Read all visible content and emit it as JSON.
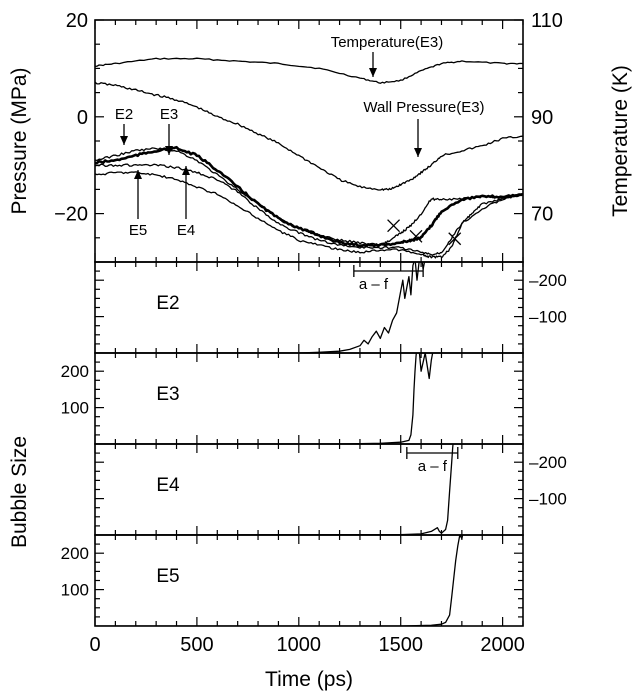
{
  "chart_data": [
    {
      "type": "line",
      "xlabel": "Time (ps)",
      "ylabel": "Pressure (MPa)",
      "ylabel_right": "Temperature (K)",
      "xlim": [
        0,
        2100
      ],
      "ylim": [
        -30,
        20
      ],
      "ylim_right": [
        60,
        110
      ],
      "x_ticks": [
        "0",
        "500",
        "1000",
        "1500",
        "2000"
      ],
      "y_ticks": [
        "20",
        "0",
        "−20"
      ],
      "y_ticks_right": [
        "110",
        "90",
        "70"
      ],
      "annotations": [
        "Temperature(E3)",
        "Wall Pressure(E3)",
        "E2",
        "E3",
        "E4",
        "E5"
      ],
      "series": [
        {
          "name": "Temperature(E3)",
          "axis": "right",
          "x": [
            0,
            100,
            300,
            500,
            700,
            900,
            1100,
            1300,
            1400,
            1500,
            1600,
            1700,
            1800,
            2000,
            2100
          ],
          "y": [
            100.5,
            101,
            102,
            102,
            101.5,
            101,
            100,
            98,
            97,
            97.5,
            99.5,
            101,
            101.5,
            101,
            101
          ]
        },
        {
          "name": "Wall Pressure(E3)",
          "axis": "left",
          "x": [
            0,
            100,
            200,
            300,
            400,
            500,
            600,
            700,
            800,
            900,
            1000,
            1100,
            1200,
            1300,
            1400,
            1450,
            1500,
            1550,
            1600,
            1650,
            1700,
            1800,
            1900,
            2000,
            2100
          ],
          "y": [
            7,
            6.5,
            5.5,
            4.5,
            3.5,
            2,
            0,
            -1.5,
            -3.5,
            -5.5,
            -8,
            -10.5,
            -13,
            -14.5,
            -15,
            -15,
            -14,
            -13,
            -11.5,
            -10,
            -8,
            -7,
            -6,
            -4.5,
            -4
          ]
        },
        {
          "name": "E2",
          "axis": "left",
          "x": [
            0,
            100,
            200,
            300,
            400,
            500,
            600,
            700,
            800,
            900,
            1000,
            1100,
            1200,
            1300,
            1400,
            1450,
            1500,
            1550,
            1600,
            1650,
            1700,
            1800,
            1900,
            2000,
            2100
          ],
          "y": [
            -9,
            -8,
            -7,
            -6.5,
            -7,
            -9,
            -12,
            -15,
            -18,
            -21,
            -23,
            -24.5,
            -25.5,
            -26,
            -26.5,
            -25.5,
            -24,
            -22.5,
            -20,
            -17,
            -17,
            -17,
            -16.5,
            -16.5,
            -16
          ]
        },
        {
          "name": "E3",
          "axis": "left",
          "x": [
            0,
            100,
            200,
            300,
            400,
            500,
            600,
            700,
            800,
            900,
            1000,
            1100,
            1200,
            1300,
            1400,
            1500,
            1550,
            1600,
            1650,
            1700,
            1800,
            1900,
            2000,
            2100
          ],
          "y": [
            -9.5,
            -9,
            -8,
            -7,
            -6.5,
            -8,
            -11,
            -14.5,
            -18,
            -21,
            -23,
            -24.5,
            -26,
            -26.5,
            -26.5,
            -26,
            -25.5,
            -25,
            -22.5,
            -19.5,
            -17,
            -16.5,
            -16.5,
            -16
          ]
        },
        {
          "name": "E4",
          "axis": "left",
          "x": [
            0,
            100,
            200,
            300,
            400,
            500,
            600,
            700,
            800,
            900,
            1000,
            1100,
            1200,
            1300,
            1400,
            1500,
            1600,
            1650,
            1700,
            1750,
            1800,
            1850,
            1900,
            2000,
            2100
          ],
          "y": [
            -10,
            -10,
            -10,
            -10,
            -10.5,
            -11.5,
            -13,
            -15.5,
            -19,
            -22,
            -24,
            -25.5,
            -26.5,
            -27,
            -27,
            -27,
            -28,
            -28.5,
            -28,
            -25,
            -22,
            -20,
            -18,
            -17,
            -16
          ]
        },
        {
          "name": "E5",
          "axis": "left",
          "x": [
            0,
            100,
            200,
            300,
            400,
            500,
            600,
            700,
            800,
            900,
            1000,
            1100,
            1200,
            1300,
            1400,
            1500,
            1600,
            1650,
            1700,
            1750,
            1800,
            1900,
            2000,
            2100
          ],
          "y": [
            -12,
            -11.5,
            -11.5,
            -12,
            -13,
            -14.5,
            -16,
            -18.5,
            -21,
            -23.5,
            -25.5,
            -26.5,
            -27.5,
            -28,
            -27.5,
            -27.5,
            -28.5,
            -29,
            -29,
            -27,
            -22,
            -19,
            -17,
            -16
          ]
        }
      ]
    },
    {
      "type": "line",
      "label": "E2",
      "x_ticks": [
        "0",
        "500",
        "1000",
        "1500",
        "2000"
      ],
      "y_ticks": [
        "200",
        "100"
      ],
      "y_ticks_side": "right",
      "ylim": [
        0,
        250
      ],
      "bracket": "a – f",
      "x": [
        0,
        1000,
        1100,
        1200,
        1250,
        1300,
        1320,
        1340,
        1360,
        1380,
        1400,
        1420,
        1440,
        1460,
        1480,
        1500,
        1510,
        1520,
        1530,
        1540,
        1550,
        1560,
        1570,
        1580,
        1590,
        1600,
        1610,
        1620,
        1630
      ],
      "values": [
        0,
        0,
        2,
        5,
        10,
        20,
        35,
        25,
        45,
        60,
        40,
        70,
        55,
        90,
        110,
        170,
        200,
        150,
        180,
        210,
        160,
        240,
        260,
        200,
        250,
        280,
        230,
        260,
        250
      ]
    },
    {
      "type": "line",
      "label": "E3",
      "x_ticks": [
        "0",
        "500",
        "1000",
        "1500",
        "2000"
      ],
      "y_ticks": [
        "200",
        "100"
      ],
      "y_ticks_side": "left",
      "ylim": [
        0,
        250
      ],
      "x": [
        0,
        1200,
        1400,
        1500,
        1540,
        1550,
        1560,
        1565,
        1570,
        1575,
        1580,
        1590,
        1600,
        1620,
        1640,
        1650,
        1660
      ],
      "values": [
        0,
        0,
        2,
        5,
        10,
        25,
        80,
        150,
        200,
        240,
        270,
        260,
        200,
        250,
        180,
        230,
        260
      ]
    },
    {
      "type": "line",
      "label": "E4",
      "x_ticks": [
        "0",
        "500",
        "1000",
        "1500",
        "2000"
      ],
      "y_ticks": [
        "200",
        "100"
      ],
      "y_ticks_side": "right",
      "ylim": [
        0,
        250
      ],
      "bracket": "a – f",
      "x": [
        0,
        1500,
        1600,
        1650,
        1680,
        1690,
        1700,
        1720,
        1730,
        1740,
        1750,
        1755,
        1760
      ],
      "values": [
        0,
        1,
        3,
        10,
        20,
        10,
        5,
        15,
        40,
        120,
        200,
        240,
        270
      ]
    },
    {
      "type": "line",
      "label": "E5",
      "x_ticks": [
        "0",
        "500",
        "1000",
        "1500",
        "2000"
      ],
      "x_tick_labels": [
        "0",
        "500",
        "1000",
        "1500",
        "2000"
      ],
      "y_ticks": [
        "200",
        "100"
      ],
      "y_ticks_side": "left",
      "ylim": [
        0,
        250
      ],
      "xlabel": "Time (ps)",
      "x": [
        0,
        1500,
        1650,
        1700,
        1720,
        1740,
        1750,
        1760,
        1770,
        1780,
        1790,
        1800,
        1810
      ],
      "values": [
        0,
        0,
        2,
        5,
        10,
        30,
        80,
        130,
        180,
        220,
        250,
        240,
        270
      ]
    }
  ],
  "shared_ylabel": "Bubble Size"
}
